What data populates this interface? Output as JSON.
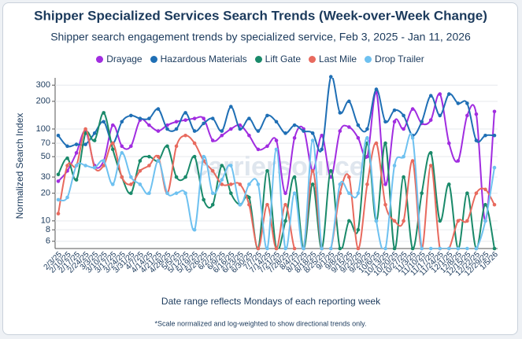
{
  "chart_data": {
    "type": "line",
    "title": "Shipper Specialized Services Search Trends (Week-over-Week Change)",
    "subtitle": "Shipper search engagement trends by specialized service, Feb 3, 2025 - Jan 11, 2026",
    "x_label": "Date range reflects Mondays of each reporting week",
    "y_label": "Normalized Search Index",
    "footnote": "*Scale normalized and log-weighted to show directional trends only.",
    "watermark": "carriersource",
    "log_scale": true,
    "grid": true,
    "legend_position": "top",
    "ylim": [
      5,
      360
    ],
    "yticks": [
      6,
      8,
      10,
      20,
      30,
      50,
      70,
      100,
      200,
      300
    ],
    "categories": [
      "2/3/25",
      "2/10/25",
      "2/17/25",
      "2/24/25",
      "3/3/25",
      "3/10/25",
      "3/17/25",
      "3/24/25",
      "3/31/25",
      "4/7/25",
      "4/14/25",
      "4/21/25",
      "4/28/25",
      "5/5/25",
      "5/12/25",
      "5/19/25",
      "5/26/25",
      "6/2/25",
      "6/9/25",
      "6/16/25",
      "6/23/25",
      "6/30/25",
      "7/7/25",
      "7/14/25",
      "7/21/25",
      "7/28/25",
      "8/4/25",
      "8/11/25",
      "8/18/25",
      "8/25/25",
      "9/1/25",
      "9/8/25",
      "9/15/25",
      "9/22/25",
      "9/29/25",
      "10/6/25",
      "10/13/25",
      "10/20/25",
      "10/27/25",
      "11/3/25",
      "11/10/25",
      "11/17/25",
      "11/24/25",
      "12/1/25",
      "12/8/25",
      "12/15/25",
      "12/22/25",
      "12/29/25",
      "1/5/26"
    ],
    "series": [
      {
        "name": "Drayage",
        "color": "#a12de0",
        "values": [
          27,
          35,
          55,
          95,
          40,
          45,
          110,
          65,
          65,
          125,
          110,
          95,
          110,
          120,
          125,
          130,
          130,
          75,
          85,
          100,
          110,
          85,
          60,
          65,
          75,
          20,
          80,
          100,
          35,
          85,
          30,
          95,
          105,
          80,
          50,
          250,
          25,
          120,
          100,
          165,
          115,
          125,
          240,
          70,
          45,
          140,
          145,
          10,
          155
        ]
      },
      {
        "name": "Hazardous Materials",
        "color": "#1f6fb5",
        "values": [
          85,
          65,
          68,
          68,
          90,
          120,
          70,
          120,
          140,
          130,
          130,
          165,
          100,
          100,
          150,
          95,
          115,
          130,
          95,
          175,
          100,
          130,
          95,
          140,
          120,
          90,
          110,
          95,
          90,
          60,
          370,
          150,
          200,
          110,
          100,
          270,
          120,
          160,
          140,
          85,
          120,
          230,
          140,
          240,
          190,
          190,
          75,
          85,
          85
        ]
      },
      {
        "name": "Lift Gate",
        "color": "#1a8a6a",
        "values": [
          32,
          48,
          28,
          90,
          75,
          150,
          60,
          30,
          20,
          45,
          50,
          45,
          65,
          30,
          30,
          50,
          17,
          15,
          40,
          20,
          15,
          18,
          5,
          35,
          5,
          10,
          30,
          5,
          25,
          5,
          35,
          5,
          10,
          8,
          70,
          10,
          70,
          5,
          30,
          5,
          20,
          55,
          10,
          25,
          5,
          20,
          5,
          15,
          5
        ]
      },
      {
        "name": "Last Mile",
        "color": "#e86a5e",
        "values": [
          12,
          40,
          40,
          100,
          38,
          40,
          70,
          30,
          25,
          35,
          40,
          50,
          20,
          65,
          85,
          70,
          45,
          35,
          25,
          25,
          25,
          15,
          5,
          15,
          5,
          15,
          5,
          5,
          35,
          5,
          5,
          20,
          30,
          5,
          25,
          70,
          15,
          10,
          10,
          45,
          5,
          40,
          5,
          5,
          10,
          10,
          20,
          22,
          15
        ]
      },
      {
        "name": "Drop Trailer",
        "color": "#6ec1f0",
        "values": [
          17,
          18,
          40,
          40,
          38,
          45,
          25,
          55,
          30,
          25,
          20,
          45,
          20,
          20,
          20,
          8,
          50,
          20,
          28,
          40,
          15,
          25,
          25,
          5,
          60,
          5,
          20,
          5,
          75,
          5,
          5,
          25,
          20,
          20,
          80,
          10,
          5,
          40,
          50,
          80,
          5,
          5,
          5,
          5,
          5,
          5,
          5,
          10,
          38
        ]
      }
    ]
  }
}
